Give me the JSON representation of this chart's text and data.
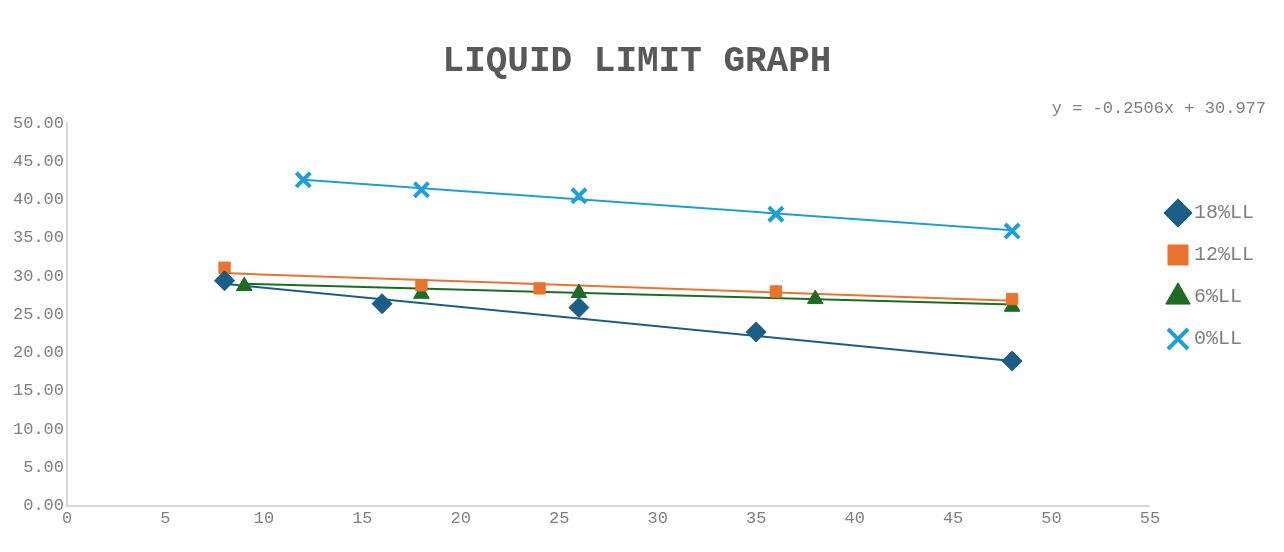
{
  "chart_data": {
    "type": "scatter",
    "title": "LIQUID LIMIT GRAPH",
    "annotations": [
      "y = -0.2506x + 30.977"
    ],
    "xlim": [
      0,
      55
    ],
    "xticks": [
      0,
      5,
      10,
      15,
      20,
      25,
      30,
      35,
      40,
      45,
      50,
      55
    ],
    "ylim": [
      0,
      50
    ],
    "yticks": [
      {
        "value": 0,
        "label": "0.00"
      },
      {
        "value": 5,
        "label": "5.00"
      },
      {
        "value": 10,
        "label": "10.00"
      },
      {
        "value": 15,
        "label": "15.00"
      },
      {
        "value": 20,
        "label": "20.00"
      },
      {
        "value": 25,
        "label": "25.00"
      },
      {
        "value": 30,
        "label": "30.00"
      },
      {
        "value": 35,
        "label": "35.00"
      },
      {
        "value": 40,
        "label": "40.00"
      },
      {
        "value": 45,
        "label": "45.00"
      },
      {
        "value": 50,
        "label": "50.00"
      }
    ],
    "grid": false,
    "legend": "right",
    "series": [
      {
        "name": "18%LL",
        "color": "#1a5e86",
        "marker": "diamond",
        "x": [
          8,
          16,
          26,
          35,
          48
        ],
        "values": [
          29.4,
          26.4,
          25.9,
          22.7,
          18.9
        ]
      },
      {
        "name": "12%LL",
        "color": "#e87430",
        "marker": "square",
        "x": [
          8,
          18,
          24,
          36,
          48
        ],
        "values": [
          31.1,
          28.8,
          28.4,
          28.0,
          27.0
        ]
      },
      {
        "name": "6%LL",
        "color": "#1d6b24",
        "marker": "triangle",
        "x": [
          9,
          18,
          26,
          38,
          48
        ],
        "values": [
          28.7,
          27.7,
          27.8,
          27.0,
          26.0
        ]
      },
      {
        "name": "0%LL",
        "color": "#1e9fd8",
        "marker": "cross",
        "x": [
          12,
          18,
          26,
          36,
          48
        ],
        "values": [
          42.6,
          41.3,
          40.5,
          38.1,
          35.9
        ]
      },
      {
        "type": "line",
        "color": "#1a5e86",
        "marker": "none",
        "x": [
          8,
          48
        ],
        "values": [
          29.0,
          18.9
        ]
      },
      {
        "type": "line",
        "color": "#e87430",
        "marker": "none",
        "x": [
          8,
          48
        ],
        "values": [
          30.4,
          26.8
        ]
      },
      {
        "type": "line",
        "color": "#1d6b24",
        "marker": "none",
        "x": [
          9,
          48
        ],
        "values": [
          29.0,
          26.3
        ]
      },
      {
        "type": "line",
        "color": "#1e9fd8",
        "marker": "none",
        "x": [
          12,
          48
        ],
        "values": [
          42.6,
          36.0
        ]
      }
    ]
  }
}
